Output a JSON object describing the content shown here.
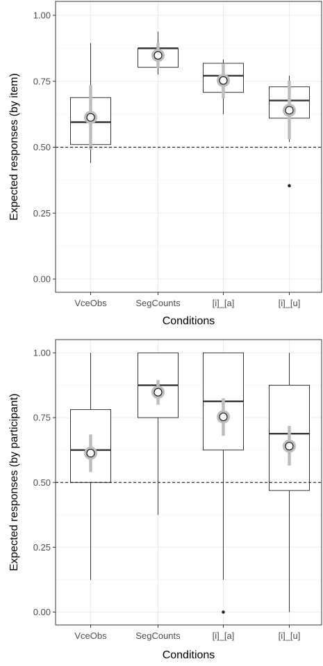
{
  "chart_data": [
    {
      "type": "box",
      "xlabel": "Conditions",
      "ylabel": "Expected responses (by item)",
      "categories": [
        "VceObs",
        "SegCounts",
        "[i]_[a]",
        "[i]_[u]"
      ],
      "ylim": [
        0.0,
        1.0
      ],
      "yticks": [
        "0.00",
        "0.25",
        "0.50",
        "0.75",
        "1.00"
      ],
      "grid": true,
      "reference_line": 0.5,
      "boxes": [
        {
          "category": "VceObs",
          "whisker_low": 0.44,
          "q1": 0.51,
          "median": 0.595,
          "q3": 0.688,
          "whisker_high": 0.895,
          "outliers": []
        },
        {
          "category": "SegCounts",
          "whisker_low": 0.775,
          "q1": 0.803,
          "median": 0.875,
          "q3": 0.875,
          "whisker_high": 0.938,
          "outliers": []
        },
        {
          "category": "[i]_[a]",
          "whisker_low": 0.625,
          "q1": 0.708,
          "median": 0.771,
          "q3": 0.818,
          "whisker_high": 0.833,
          "outliers": []
        },
        {
          "category": "[i]_[u]",
          "whisker_low": 0.52,
          "q1": 0.61,
          "median": 0.677,
          "q3": 0.729,
          "whisker_high": 0.771,
          "outliers": [
            0.354
          ]
        }
      ],
      "means": [
        {
          "category": "VceObs",
          "mean": 0.613,
          "ci_low": 0.49,
          "ci_high": 0.735
        },
        {
          "category": "SegCounts",
          "mean": 0.848,
          "ci_low": 0.8,
          "ci_high": 0.895
        },
        {
          "category": "[i]_[a]",
          "mean": 0.753,
          "ci_low": 0.685,
          "ci_high": 0.815
        },
        {
          "category": "[i]_[u]",
          "mean": 0.64,
          "ci_low": 0.53,
          "ci_high": 0.752
        }
      ]
    },
    {
      "type": "box",
      "xlabel": "Conditions",
      "ylabel": "Expected responses (by participant)",
      "categories": [
        "VceObs",
        "SegCounts",
        "[i]_[a]",
        "[i]_[u]"
      ],
      "ylim": [
        0.0,
        1.0
      ],
      "yticks": [
        "0.00",
        "0.25",
        "0.50",
        "0.75",
        "1.00"
      ],
      "grid": true,
      "reference_line": 0.5,
      "boxes": [
        {
          "category": "VceObs",
          "whisker_low": 0.125,
          "q1": 0.5,
          "median": 0.625,
          "q3": 0.781,
          "whisker_high": 1.0,
          "outliers": []
        },
        {
          "category": "SegCounts",
          "whisker_low": 0.375,
          "q1": 0.75,
          "median": 0.875,
          "q3": 1.0,
          "whisker_high": 1.0,
          "outliers": []
        },
        {
          "category": "[i]_[a]",
          "whisker_low": 0.125,
          "q1": 0.625,
          "median": 0.813,
          "q3": 1.0,
          "whisker_high": 1.0,
          "outliers": [
            0.0
          ]
        },
        {
          "category": "[i]_[u]",
          "whisker_low": 0.0,
          "q1": 0.469,
          "median": 0.688,
          "q3": 0.875,
          "whisker_high": 1.0,
          "outliers": []
        }
      ],
      "means": [
        {
          "category": "VceObs",
          "mean": 0.613,
          "ci_low": 0.54,
          "ci_high": 0.685
        },
        {
          "category": "SegCounts",
          "mean": 0.848,
          "ci_low": 0.8,
          "ci_high": 0.895
        },
        {
          "category": "[i]_[a]",
          "mean": 0.753,
          "ci_low": 0.68,
          "ci_high": 0.825
        },
        {
          "category": "[i]_[u]",
          "mean": 0.64,
          "ci_low": 0.565,
          "ci_high": 0.718
        }
      ]
    }
  ]
}
